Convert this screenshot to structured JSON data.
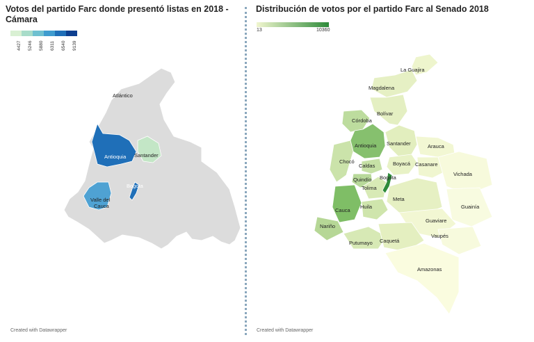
{
  "left_map": {
    "title": "Votos del partido Farc donde presentó listas en 2018 - Cámara",
    "legend": {
      "ticks": [
        "4427",
        "5246",
        "5880",
        "6311",
        "6540",
        "9139"
      ],
      "colors": [
        "#d9f0d3",
        "#a8dcc9",
        "#6fc0d0",
        "#3f9ccf",
        "#1f6fb8",
        "#0d3f8f"
      ]
    },
    "regions": [
      {
        "name": "Antioquia",
        "value": 9139,
        "color": "#1f6fb8"
      },
      {
        "name": "Santander",
        "value": 4427,
        "color": "#c3e6c6"
      },
      {
        "name": "Valle del Cauca",
        "value": 5880,
        "color": "#4fa2d3"
      },
      {
        "name": "Bogotá",
        "value": 6540,
        "color": "#1f6fb8"
      }
    ],
    "labels": {
      "atlantico": "Atlántico",
      "antioquia": "Antioquia",
      "santander": "Santander",
      "valle": "Valle del Cauca",
      "bogota": "Bogota"
    },
    "credit": "Created with Datawrapper",
    "base_color": "#dcdcdc"
  },
  "right_map": {
    "title": "Distribución de votos por el partido Farc al Senado 2018",
    "scale": {
      "min": "13",
      "max": "10360",
      "color_low": "#f1f6cf",
      "color_high": "#2e8b3a"
    },
    "departments": [
      "La Guajira",
      "Magdalena",
      "Bolívar",
      "Córdoba",
      "Antioquia",
      "Santander",
      "Arauca",
      "Chocó",
      "Caldas",
      "Boyacá",
      "Casanare",
      "Vichada",
      "Quindío",
      "Bogota",
      "Tolima",
      "Meta",
      "Guainía",
      "Cauca",
      "Huila",
      "Nariño",
      "Guaviare",
      "Vaupés",
      "Putumayo",
      "Caquetá",
      "Amazonas"
    ],
    "credit": "Created with Datawrapper"
  }
}
